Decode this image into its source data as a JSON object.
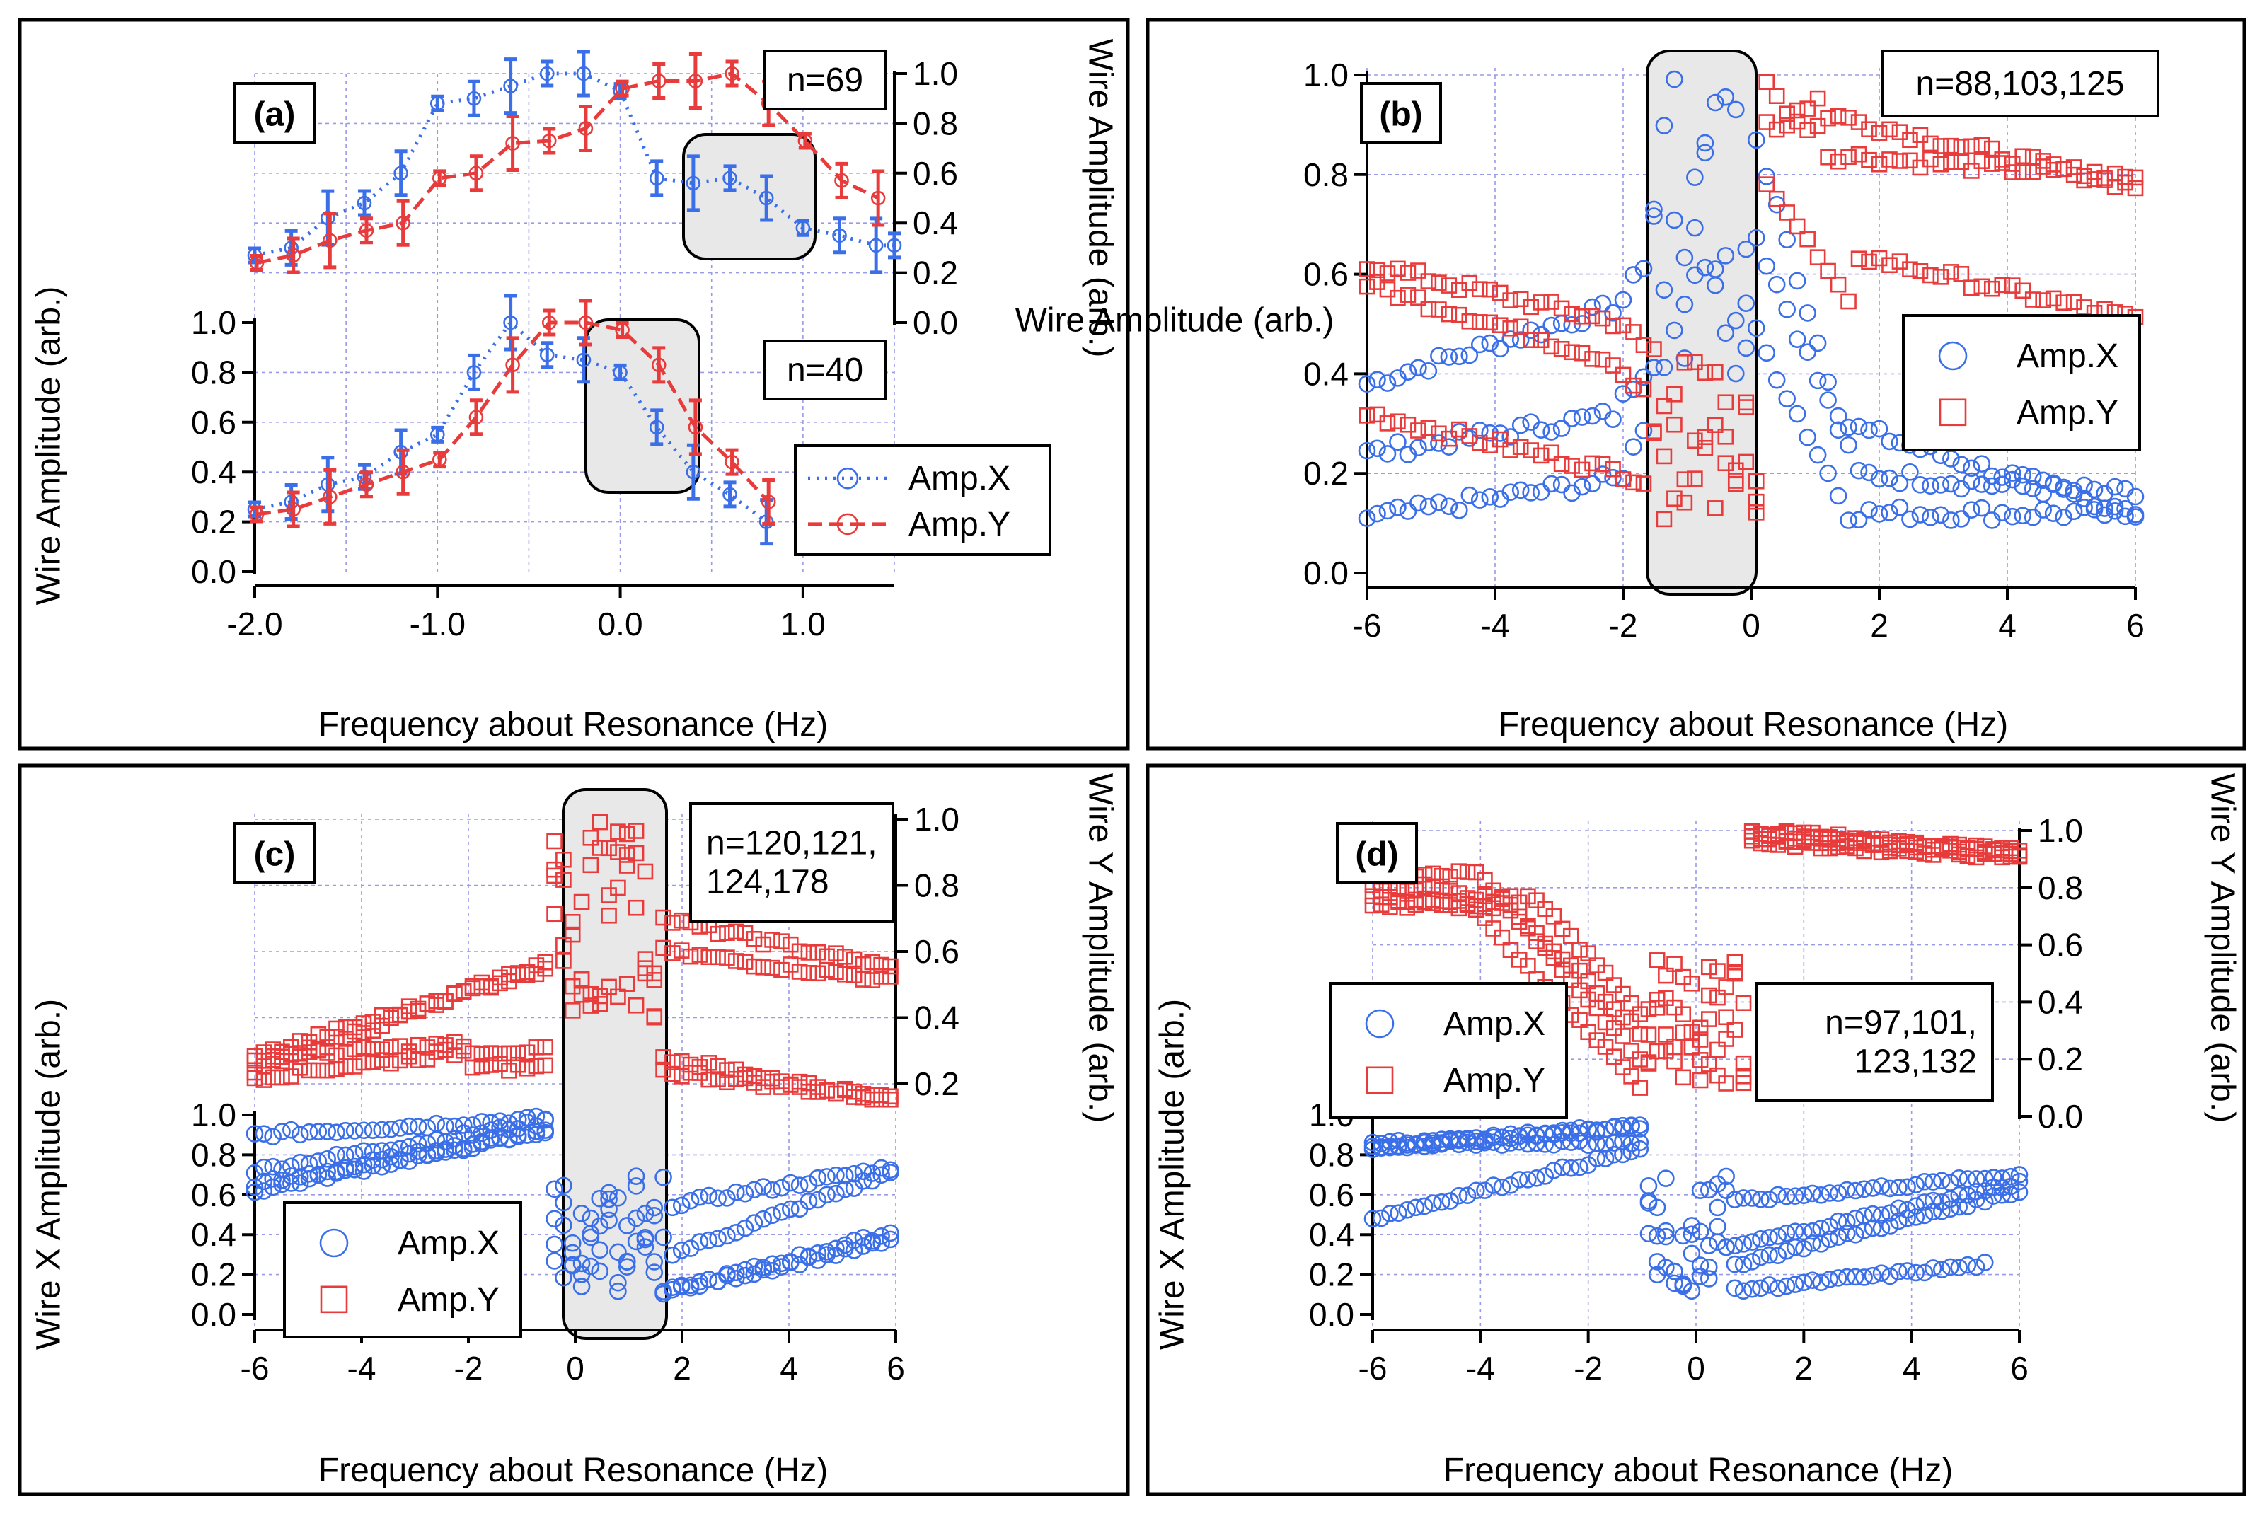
{
  "chart_data": [
    {
      "panel": "a",
      "type": "scatter",
      "label": "(a)",
      "xlabel": "Frequency about Resonance (Hz)",
      "xticks": [
        "-2.0",
        "-1.0",
        "0.0",
        "1.0"
      ],
      "xlim": [
        -2.0,
        1.5
      ],
      "left_ylabel": "Wire Amplitude (arb.)",
      "right_ylabel": "Wire Amplitude (arb.)",
      "ylim": [
        0.0,
        1.0
      ],
      "yticks": [
        "0.0",
        "0.2",
        "0.4",
        "0.6",
        "0.8",
        "1.0"
      ],
      "legend": [
        "Amp.X",
        "Amp.Y"
      ],
      "subplots": [
        {
          "position": "upper",
          "annotation": "n=69",
          "series": [
            {
              "name": "Amp.X",
              "color": "#3b6fe8",
              "x": [
                -2.0,
                -1.8,
                -1.6,
                -1.4,
                -1.2,
                -1.0,
                -0.8,
                -0.6,
                -0.4,
                -0.2,
                0.0,
                0.2,
                0.4,
                0.6,
                0.8,
                1.0,
                1.2,
                1.4,
                1.5
              ],
              "y": [
                0.27,
                0.3,
                0.42,
                0.48,
                0.6,
                0.88,
                0.9,
                0.95,
                1.0,
                1.0,
                0.93,
                0.58,
                0.56,
                0.58,
                0.5,
                0.38,
                0.35,
                0.31,
                0.31
              ]
            },
            {
              "name": "Amp.Y",
              "color": "#e83b3b",
              "x": [
                -2.0,
                -1.8,
                -1.6,
                -1.4,
                -1.2,
                -1.0,
                -0.8,
                -0.6,
                -0.4,
                -0.2,
                0.0,
                0.2,
                0.4,
                0.6,
                0.8,
                1.0,
                1.2,
                1.4
              ],
              "y": [
                0.24,
                0.27,
                0.33,
                0.37,
                0.4,
                0.58,
                0.6,
                0.72,
                0.73,
                0.78,
                0.94,
                0.97,
                0.97,
                1.0,
                0.88,
                0.73,
                0.57,
                0.5
              ]
            }
          ]
        },
        {
          "position": "lower",
          "annotation": "n=40",
          "series": [
            {
              "name": "Amp.X",
              "color": "#3b6fe8",
              "x": [
                -2.0,
                -1.8,
                -1.6,
                -1.4,
                -1.2,
                -1.0,
                -0.8,
                -0.6,
                -0.4,
                -0.2,
                0.0,
                0.2,
                0.4,
                0.6,
                0.8
              ],
              "y": [
                0.25,
                0.28,
                0.35,
                0.38,
                0.48,
                0.55,
                0.8,
                1.0,
                0.87,
                0.85,
                0.8,
                0.58,
                0.4,
                0.31,
                0.2
              ]
            },
            {
              "name": "Amp.Y",
              "color": "#e83b3b",
              "x": [
                -2.0,
                -1.8,
                -1.6,
                -1.4,
                -1.2,
                -1.0,
                -0.8,
                -0.6,
                -0.4,
                -0.2,
                0.0,
                0.2,
                0.4,
                0.6,
                0.8
              ],
              "y": [
                0.23,
                0.25,
                0.3,
                0.35,
                0.4,
                0.45,
                0.62,
                0.83,
                1.0,
                1.0,
                0.97,
                0.83,
                0.58,
                0.44,
                0.28
              ]
            }
          ]
        }
      ]
    },
    {
      "panel": "b",
      "type": "scatter",
      "label": "(b)",
      "annotation": "n=88,103,125",
      "xlabel": "Frequency about Resonance (Hz)",
      "xticks": [
        "-6",
        "-4",
        "-2",
        "0",
        "2",
        "4",
        "6"
      ],
      "xlim": [
        -6,
        6
      ],
      "ylabel": "Wire Amplitude (arb.)",
      "ylim": [
        0.0,
        1.0
      ],
      "yticks": [
        "0.0",
        "0.2",
        "0.4",
        "0.6",
        "0.8",
        "1.0"
      ],
      "legend": [
        "Amp.X",
        "Amp.Y"
      ],
      "series": [
        {
          "name": "Amp.X",
          "color": "#3b6fe8",
          "marker": "circle",
          "note": "three overlaid sweeps, approximate"
        },
        {
          "name": "Amp.Y",
          "color": "#e83b3b",
          "marker": "square",
          "note": "three overlaid sweeps, approximate"
        }
      ]
    },
    {
      "panel": "c",
      "type": "scatter",
      "label": "(c)",
      "annotation_lines": [
        "n=120,121,",
        "124,178"
      ],
      "xlabel": "Frequency about Resonance (Hz)",
      "xticks": [
        "-6",
        "-4",
        "-2",
        "0",
        "2",
        "4",
        "6"
      ],
      "xlim": [
        -6,
        6
      ],
      "left_ylabel": "Wire X Amplitude (arb.)",
      "left_yticks": [
        "0.0",
        "0.2",
        "0.4",
        "0.6",
        "0.8",
        "1.0"
      ],
      "right_ylabel": "Wire Y Amplitude (arb.)",
      "right_yticks": [
        "0.2",
        "0.4",
        "0.6",
        "0.8",
        "1.0"
      ],
      "legend": [
        "Amp.X",
        "Amp.Y"
      ],
      "series": [
        {
          "name": "Amp.X",
          "color": "#3b6fe8",
          "marker": "circle",
          "note": "four overlaid sweeps, approximate"
        },
        {
          "name": "Amp.Y",
          "color": "#e83b3b",
          "marker": "square",
          "note": "four overlaid sweeps, approximate"
        }
      ]
    },
    {
      "panel": "d",
      "type": "scatter",
      "label": "(d)",
      "annotation_lines": [
        "n=97,101,",
        "123,132"
      ],
      "xlabel": "Frequency about Resonance (Hz)",
      "xticks": [
        "-6",
        "-4",
        "-2",
        "0",
        "2",
        "4",
        "6"
      ],
      "xlim": [
        -6,
        6
      ],
      "left_ylabel": "Wire X Amplitude (arb.)",
      "left_yticks": [
        "0.0",
        "0.2",
        "0.4",
        "0.6",
        "0.8",
        "1.0"
      ],
      "right_ylabel": "Wire Y Amplitude (arb.)",
      "right_yticks": [
        "0.0",
        "0.2",
        "0.4",
        "0.6",
        "0.8",
        "1.0"
      ],
      "legend": [
        "Amp.X",
        "Amp.Y"
      ],
      "series": [
        {
          "name": "Amp.X",
          "color": "#3b6fe8",
          "marker": "circle",
          "note": "four overlaid sweeps, approximate"
        },
        {
          "name": "Amp.Y",
          "color": "#e83b3b",
          "marker": "square",
          "note": "four overlaid sweeps, approximate"
        }
      ]
    }
  ]
}
